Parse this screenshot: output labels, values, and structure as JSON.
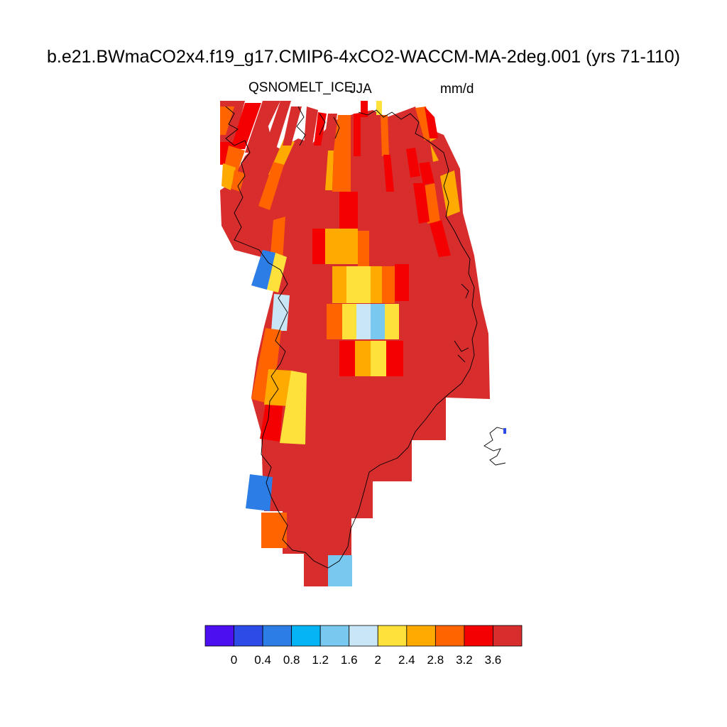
{
  "header": {
    "case_name": "b.e21.BWmaCO2x4.f19_g17.CMIP6-4xCO2-WACCM-MA-2deg.001 (yrs 71-110)",
    "variable": "QSNOMELT_ICE",
    "season": "JJA",
    "units": "mm/d"
  },
  "chart_data": {
    "type": "heatmap",
    "title": "b.e21.BWmaCO2x4.f19_g17.CMIP6-4xCO2-WACCM-MA-2deg.001 (yrs 71-110)",
    "left_label": "QSNOMELT_ICE",
    "center_label": "JJA",
    "right_label": "mm/d",
    "region": "Greenland (polar projection)",
    "colorbar": {
      "tick_labels": [
        "0",
        "0.4",
        "0.8",
        "1.2",
        "1.6",
        "2",
        "2.4",
        "2.8",
        "3.2",
        "3.6"
      ],
      "levels": [
        0,
        0.4,
        0.8,
        1.2,
        1.6,
        2,
        2.4,
        2.8,
        3.2,
        3.6
      ],
      "colors": [
        "#4b0ff0",
        "#2d4be6",
        "#2d7de6",
        "#05b4f5",
        "#78c8f0",
        "#c8e6f5",
        "#ffe13c",
        "#ffaa00",
        "#ff6400",
        "#f50000",
        "#d72d2d"
      ],
      "orientation": "horizontal",
      "placement": "bottom"
    },
    "cells": [
      {
        "region": "interior ice sheet (dominant)",
        "value_range": ">=3.6",
        "color": "#d72d2d"
      },
      {
        "region": "central-north column",
        "value_range": "3.2-3.6",
        "color": "#f50000"
      },
      {
        "region": "central basin (upper)",
        "value_range": "2.4-2.8",
        "color": "#ffaa00"
      },
      {
        "region": "central basin (middle)",
        "value_range": "2.0-2.4",
        "color": "#ffe13c"
      },
      {
        "region": "central basin (core)",
        "value_range": "1.6-2.0",
        "color": "#78c8f0"
      },
      {
        "region": "central basin (core edge)",
        "value_range": "2.0",
        "color": "#c8e6f5"
      },
      {
        "region": "west coast (north)",
        "value_range": "0.8-1.2",
        "color": "#2d7de6"
      },
      {
        "region": "west coast (middle)",
        "value_range": "2.0",
        "color": "#c8e6f5"
      },
      {
        "region": "southwest coast",
        "value_range": "0.8-1.2",
        "color": "#2d7de6"
      },
      {
        "region": "southern tip",
        "value_range": "1.6-2.0",
        "color": "#78c8f0"
      },
      {
        "region": "northern margins",
        "value_range": "2.4-3.6",
        "color": "#ff6400"
      }
    ]
  }
}
